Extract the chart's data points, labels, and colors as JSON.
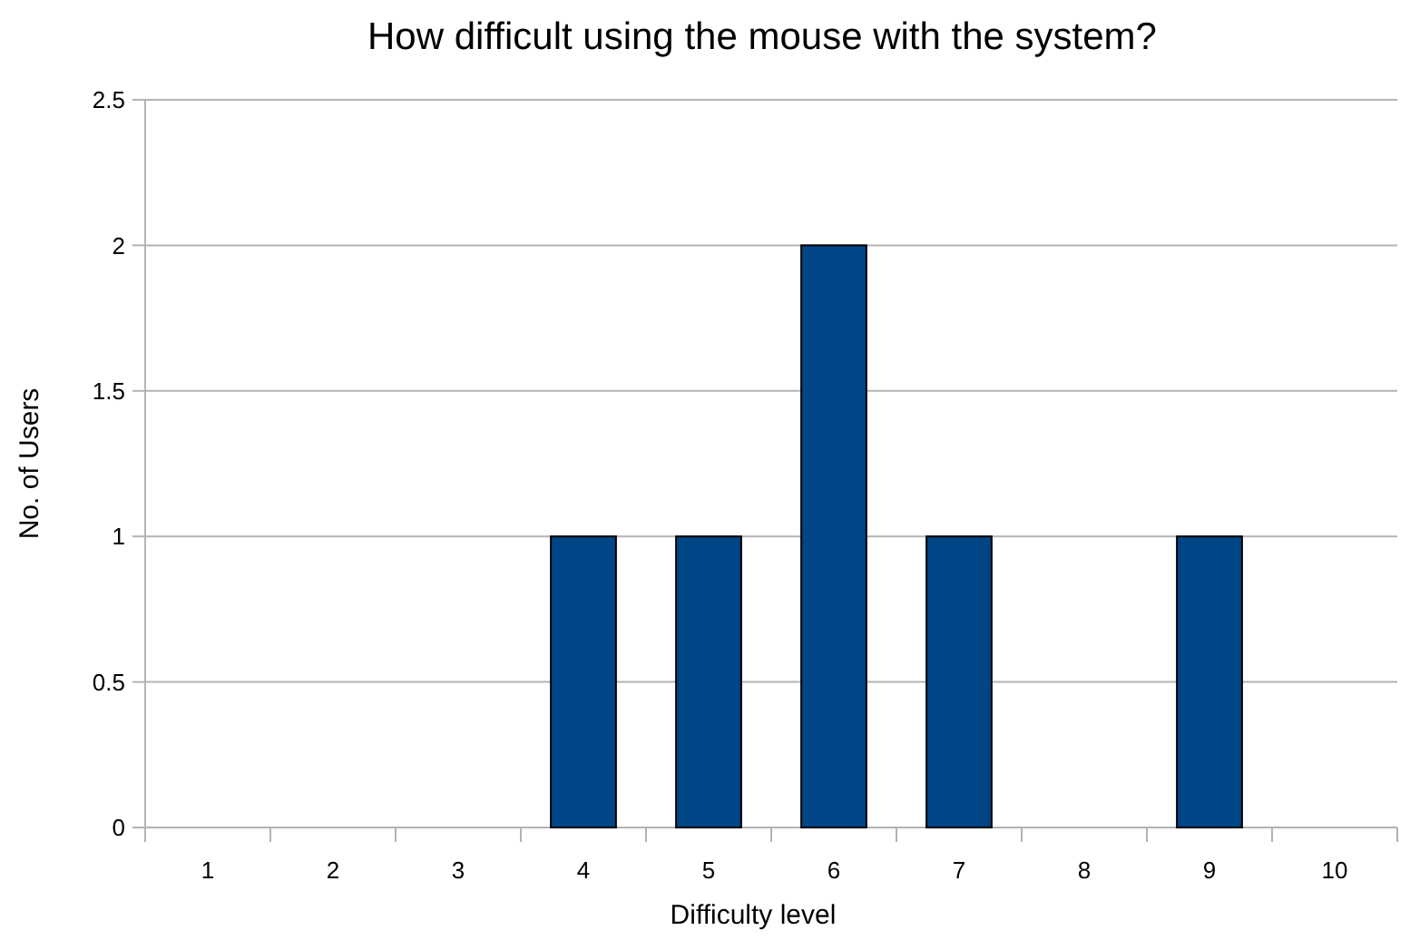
{
  "chart_data": {
    "type": "bar",
    "title": "How difficult using the mouse with the system?",
    "xlabel": "Difficulty level",
    "ylabel": "No. of Users",
    "categories": [
      "1",
      "2",
      "3",
      "4",
      "5",
      "6",
      "7",
      "8",
      "9",
      "10"
    ],
    "values": [
      0,
      0,
      0,
      1,
      1,
      2,
      1,
      0,
      1,
      0
    ],
    "color": "#004586",
    "ylim": [
      0,
      2.5
    ],
    "yticks": [
      0,
      0.5,
      1,
      1.5,
      2,
      2.5
    ],
    "grid": "y"
  }
}
